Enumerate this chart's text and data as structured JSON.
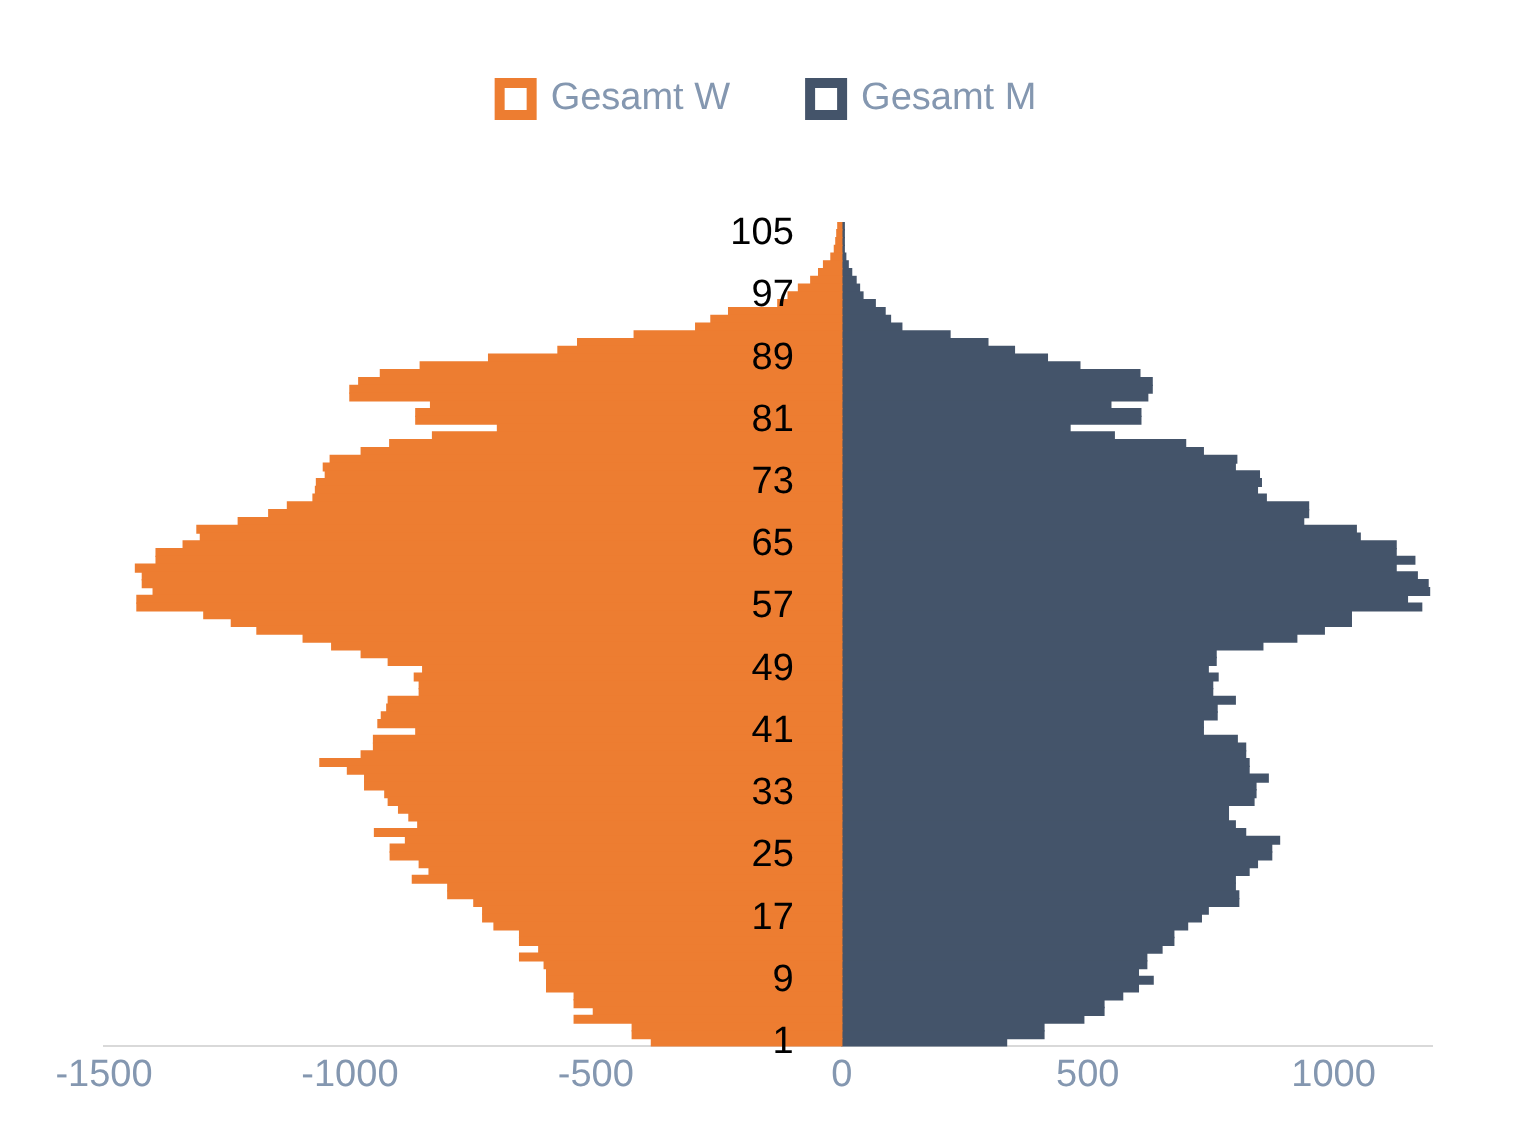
{
  "chart_data": {
    "type": "bar",
    "orientation": "horizontal",
    "stacked": true,
    "categories": [
      null,
      "105",
      null,
      null,
      null,
      null,
      null,
      null,
      null,
      "97",
      null,
      null,
      null,
      null,
      null,
      null,
      null,
      "89",
      null,
      null,
      null,
      null,
      null,
      null,
      null,
      "81",
      null,
      null,
      null,
      null,
      null,
      null,
      null,
      "73",
      null,
      null,
      null,
      null,
      null,
      null,
      null,
      "65",
      null,
      null,
      null,
      null,
      null,
      null,
      null,
      "57",
      null,
      null,
      null,
      null,
      null,
      null,
      null,
      "49",
      null,
      null,
      null,
      null,
      null,
      null,
      null,
      "41",
      null,
      null,
      null,
      null,
      null,
      null,
      null,
      "33",
      null,
      null,
      null,
      null,
      null,
      null,
      null,
      "25",
      null,
      null,
      null,
      null,
      null,
      null,
      null,
      "17",
      null,
      null,
      null,
      null,
      null,
      null,
      null,
      "9",
      null,
      null,
      null,
      null,
      null,
      null,
      null,
      "1"
    ],
    "series": [
      {
        "name": "Gesamt W",
        "color": "#ed7d31",
        "values": [
          -8,
          -10,
          -12,
          -15,
          -22,
          -37,
          -47,
          -63,
          -88,
          -109,
          -130,
          -230,
          -266,
          -297,
          -422,
          -537,
          -577,
          -718,
          -857,
          -938,
          -982,
          -1000,
          -1000,
          -836,
          -866,
          -866,
          -700,
          -832,
          -919,
          -977,
          -1040,
          -1054,
          -1050,
          -1068,
          -1070,
          -1075,
          -1127,
          -1165,
          -1227,
          -1311,
          -1304,
          -1339,
          -1394,
          -1394,
          -1436,
          -1422,
          -1422,
          -1400,
          -1433,
          -1433,
          -1297,
          -1241,
          -1189,
          -1095,
          -1037,
          -977,
          -922,
          -852,
          -869,
          -859,
          -859,
          -922,
          -925,
          -936,
          -943,
          -866,
          -952,
          -952,
          -977,
          -1061,
          -1005,
          -970,
          -970,
          -929,
          -922,
          -901,
          -880,
          -862,
          -950,
          -887,
          -918,
          -918,
          -859,
          -839,
          -873,
          -801,
          -801,
          -748,
          -730,
          -730,
          -707,
          -655,
          -655,
          -616,
          -655,
          -605,
          -600,
          -600,
          -600,
          -544,
          -544,
          -505,
          -544,
          -426,
          -426,
          -387
        ]
      },
      {
        "name": "Gesamt M",
        "color": "#44546a",
        "values": [
          5,
          5,
          5,
          5,
          8,
          13,
          20,
          29,
          36,
          43,
          68,
          88,
          99,
          122,
          220,
          297,
          351,
          418,
          484,
          606,
          631,
          631,
          622,
          547,
          608,
          608,
          464,
          554,
          699,
          735,
          803,
          800,
          849,
          853,
          845,
          863,
          949,
          949,
          939,
          1046,
          1054,
          1127,
          1127,
          1165,
          1127,
          1170,
          1192,
          1195,
          1150,
          1179,
          1036,
          1036,
          981,
          925,
          856,
          761,
          761,
          745,
          765,
          754,
          754,
          800,
          763,
          763,
          735,
          735,
          804,
          821,
          821,
          828,
          828,
          867,
          842,
          842,
          838,
          786,
          786,
          800,
          821,
          890,
          874,
          874,
          845,
          828,
          800,
          800,
          807,
          807,
          745,
          731,
          703,
          675,
          675,
          651,
          620,
          620,
          603,
          633,
          603,
          571,
          533,
          533,
          492,
          411,
          411,
          335
        ]
      }
    ],
    "xlim": [
      -1500,
      1200
    ],
    "xticks": [
      -1500,
      -1000,
      -500,
      0,
      500,
      1000
    ],
    "grid": false,
    "legend": "top"
  }
}
